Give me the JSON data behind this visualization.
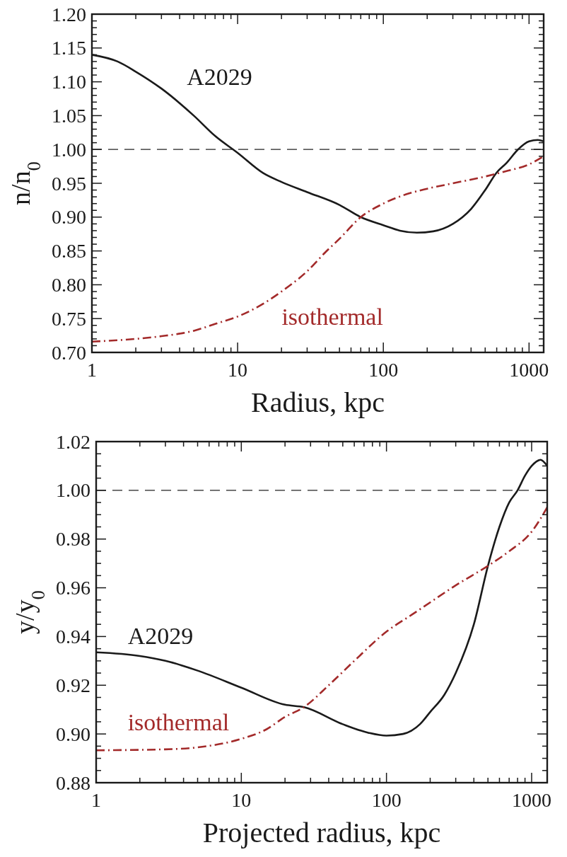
{
  "chart_data": [
    {
      "type": "line",
      "xlabel": "Radius, kpc",
      "ylabel": "n/n$_{0}$",
      "log": "x",
      "xlim": [
        1,
        1260
      ],
      "ylim": [
        0.7,
        1.2
      ],
      "xticks": [
        1,
        {
          "value": 2,
          "label": null
        },
        {
          "value": 3,
          "label": null
        },
        {
          "value": 4,
          "label": null
        },
        {
          "value": 5,
          "label": null
        },
        {
          "value": 6,
          "label": null
        },
        {
          "value": 7,
          "label": null
        },
        {
          "value": 8,
          "label": null
        },
        {
          "value": 9,
          "label": null
        },
        10,
        {
          "value": 20,
          "label": null
        },
        {
          "value": 30,
          "label": null
        },
        {
          "value": 40,
          "label": null
        },
        {
          "value": 50,
          "label": null
        },
        {
          "value": 60,
          "label": null
        },
        {
          "value": 70,
          "label": null
        },
        {
          "value": 80,
          "label": null
        },
        {
          "value": 90,
          "label": null
        },
        100,
        {
          "value": 200,
          "label": null
        },
        {
          "value": 300,
          "label": null
        },
        {
          "value": 400,
          "label": null
        },
        {
          "value": 500,
          "label": null
        },
        {
          "value": 600,
          "label": null
        },
        {
          "value": 700,
          "label": null
        },
        {
          "value": 800,
          "label": null
        },
        {
          "value": 900,
          "label": null
        },
        1000
      ],
      "yticks": [
        {
          "value": 0.7,
          "label": "0.70"
        },
        {
          "value": 0.71,
          "label": null
        },
        {
          "value": 0.72,
          "label": null
        },
        {
          "value": 0.73,
          "label": null
        },
        {
          "value": 0.74,
          "label": null
        },
        {
          "value": 0.75,
          "label": "0.75"
        },
        {
          "value": 0.76,
          "label": null
        },
        {
          "value": 0.77,
          "label": null
        },
        {
          "value": 0.78,
          "label": null
        },
        {
          "value": 0.79,
          "label": null
        },
        {
          "value": 0.8,
          "label": "0.80"
        },
        {
          "value": 0.81,
          "label": null
        },
        {
          "value": 0.82,
          "label": null
        },
        {
          "value": 0.83,
          "label": null
        },
        {
          "value": 0.84,
          "label": null
        },
        {
          "value": 0.85,
          "label": "0.85"
        },
        {
          "value": 0.86,
          "label": null
        },
        {
          "value": 0.87,
          "label": null
        },
        {
          "value": 0.88,
          "label": null
        },
        {
          "value": 0.89,
          "label": null
        },
        {
          "value": 0.9,
          "label": "0.90"
        },
        {
          "value": 0.91,
          "label": null
        },
        {
          "value": 0.92,
          "label": null
        },
        {
          "value": 0.93,
          "label": null
        },
        {
          "value": 0.94,
          "label": null
        },
        {
          "value": 0.95,
          "label": "0.95"
        },
        {
          "value": 0.96,
          "label": null
        },
        {
          "value": 0.97,
          "label": null
        },
        {
          "value": 0.98,
          "label": null
        },
        {
          "value": 0.99,
          "label": null
        },
        {
          "value": 1.0,
          "label": "1.00"
        },
        {
          "value": 1.01,
          "label": null
        },
        {
          "value": 1.02,
          "label": null
        },
        {
          "value": 1.03,
          "label": null
        },
        {
          "value": 1.04,
          "label": null
        },
        {
          "value": 1.05,
          "label": "1.05"
        },
        {
          "value": 1.06,
          "label": null
        },
        {
          "value": 1.07,
          "label": null
        },
        {
          "value": 1.08,
          "label": null
        },
        {
          "value": 1.09,
          "label": null
        },
        {
          "value": 1.1,
          "label": "1.10"
        },
        {
          "value": 1.11,
          "label": null
        },
        {
          "value": 1.12,
          "label": null
        },
        {
          "value": 1.13,
          "label": null
        },
        {
          "value": 1.14,
          "label": null
        },
        {
          "value": 1.15,
          "label": "1.15"
        },
        {
          "value": 1.16,
          "label": null
        },
        {
          "value": 1.17,
          "label": null
        },
        {
          "value": 1.18,
          "label": null
        },
        {
          "value": 1.19,
          "label": null
        },
        {
          "value": 1.2,
          "label": "1.20"
        }
      ],
      "grid": false,
      "ref_lines": [
        {
          "axis": "y",
          "value": 1.0,
          "color": "#222222",
          "line_style": "dashed"
        }
      ],
      "series": [
        {
          "name": "A2029",
          "color": "#1a1a1a",
          "line_style": "solid",
          "x": [
            1,
            1.5,
            2,
            3,
            5,
            7,
            10,
            15,
            20,
            30,
            50,
            70,
            100,
            130,
            170,
            220,
            300,
            400,
            500,
            600,
            700,
            840,
            1000,
            1150,
            1260
          ],
          "values": [
            1.14,
            1.13,
            1.115,
            1.09,
            1.05,
            1.02,
            0.995,
            0.965,
            0.952,
            0.937,
            0.918,
            0.9,
            0.888,
            0.88,
            0.877,
            0.879,
            0.89,
            0.912,
            0.94,
            0.966,
            0.98,
            1.0,
            1.012,
            1.014,
            1.012
          ]
        },
        {
          "name": "isothermal",
          "color": "#a32a2a",
          "line_style": "dashdot",
          "x": [
            1,
            2,
            3,
            5,
            7,
            10,
            15,
            20,
            30,
            40,
            50,
            70,
            100,
            150,
            200,
            300,
            500,
            700,
            1000,
            1260
          ],
          "values": [
            0.716,
            0.72,
            0.724,
            0.732,
            0.742,
            0.753,
            0.772,
            0.79,
            0.82,
            0.848,
            0.868,
            0.9,
            0.92,
            0.935,
            0.942,
            0.95,
            0.96,
            0.968,
            0.978,
            0.99
          ]
        }
      ]
    },
    {
      "type": "line",
      "xlabel": "Projected radius, kpc",
      "ylabel": "y/y$_{0}$",
      "log": "x",
      "xlim": [
        1,
        1280
      ],
      "ylim": [
        0.88,
        1.02
      ],
      "xticks": [
        1,
        {
          "value": 2,
          "label": null
        },
        {
          "value": 3,
          "label": null
        },
        {
          "value": 4,
          "label": null
        },
        {
          "value": 5,
          "label": null
        },
        {
          "value": 6,
          "label": null
        },
        {
          "value": 7,
          "label": null
        },
        {
          "value": 8,
          "label": null
        },
        {
          "value": 9,
          "label": null
        },
        10,
        {
          "value": 20,
          "label": null
        },
        {
          "value": 30,
          "label": null
        },
        {
          "value": 40,
          "label": null
        },
        {
          "value": 50,
          "label": null
        },
        {
          "value": 60,
          "label": null
        },
        {
          "value": 70,
          "label": null
        },
        {
          "value": 80,
          "label": null
        },
        {
          "value": 90,
          "label": null
        },
        100,
        {
          "value": 200,
          "label": null
        },
        {
          "value": 300,
          "label": null
        },
        {
          "value": 400,
          "label": null
        },
        {
          "value": 500,
          "label": null
        },
        {
          "value": 600,
          "label": null
        },
        {
          "value": 700,
          "label": null
        },
        {
          "value": 800,
          "label": null
        },
        {
          "value": 900,
          "label": null
        },
        1000
      ],
      "yticks": [
        {
          "value": 0.88,
          "label": "0.88"
        },
        {
          "value": 0.885,
          "label": null
        },
        {
          "value": 0.89,
          "label": null
        },
        {
          "value": 0.895,
          "label": null
        },
        {
          "value": 0.9,
          "label": "0.90"
        },
        {
          "value": 0.905,
          "label": null
        },
        {
          "value": 0.91,
          "label": null
        },
        {
          "value": 0.915,
          "label": null
        },
        {
          "value": 0.92,
          "label": "0.92"
        },
        {
          "value": 0.925,
          "label": null
        },
        {
          "value": 0.93,
          "label": null
        },
        {
          "value": 0.935,
          "label": null
        },
        {
          "value": 0.94,
          "label": "0.94"
        },
        {
          "value": 0.945,
          "label": null
        },
        {
          "value": 0.95,
          "label": null
        },
        {
          "value": 0.955,
          "label": null
        },
        {
          "value": 0.96,
          "label": "0.96"
        },
        {
          "value": 0.965,
          "label": null
        },
        {
          "value": 0.97,
          "label": null
        },
        {
          "value": 0.975,
          "label": null
        },
        {
          "value": 0.98,
          "label": "0.98"
        },
        {
          "value": 0.985,
          "label": null
        },
        {
          "value": 0.99,
          "label": null
        },
        {
          "value": 0.995,
          "label": null
        },
        {
          "value": 1.0,
          "label": "1.00"
        },
        {
          "value": 1.005,
          "label": null
        },
        {
          "value": 1.01,
          "label": null
        },
        {
          "value": 1.015,
          "label": null
        },
        {
          "value": 1.02,
          "label": "1.02"
        }
      ],
      "grid": false,
      "ref_lines": [
        {
          "axis": "y",
          "value": 1.0,
          "color": "#222222",
          "line_style": "dashed"
        }
      ],
      "series": [
        {
          "name": "A2029",
          "color": "#1a1a1a",
          "line_style": "solid",
          "x": [
            1,
            2,
            3,
            5,
            10,
            20,
            27,
            50,
            75,
            100,
            130,
            170,
            200,
            250,
            300,
            400,
            500,
            600,
            700,
            800,
            900,
            1000,
            1150,
            1280
          ],
          "values": [
            0.9335,
            0.932,
            0.93,
            0.926,
            0.919,
            0.912,
            0.911,
            0.904,
            0.9005,
            0.8993,
            0.9,
            0.904,
            0.909,
            0.916,
            0.925,
            0.945,
            0.969,
            0.985,
            0.995,
            1.0,
            1.006,
            1.01,
            1.0125,
            1.01
          ]
        },
        {
          "name": "isothermal",
          "color": "#a32a2a",
          "line_style": "dashdot",
          "x": [
            1,
            3,
            5,
            10,
            15,
            20,
            27,
            40,
            60,
            100,
            150,
            200,
            300,
            500,
            700,
            1000,
            1280
          ],
          "values": [
            0.8933,
            0.8937,
            0.8945,
            0.898,
            0.902,
            0.907,
            0.911,
            0.92,
            0.93,
            0.942,
            0.949,
            0.954,
            0.961,
            0.969,
            0.975,
            0.983,
            0.993
          ]
        }
      ]
    }
  ]
}
